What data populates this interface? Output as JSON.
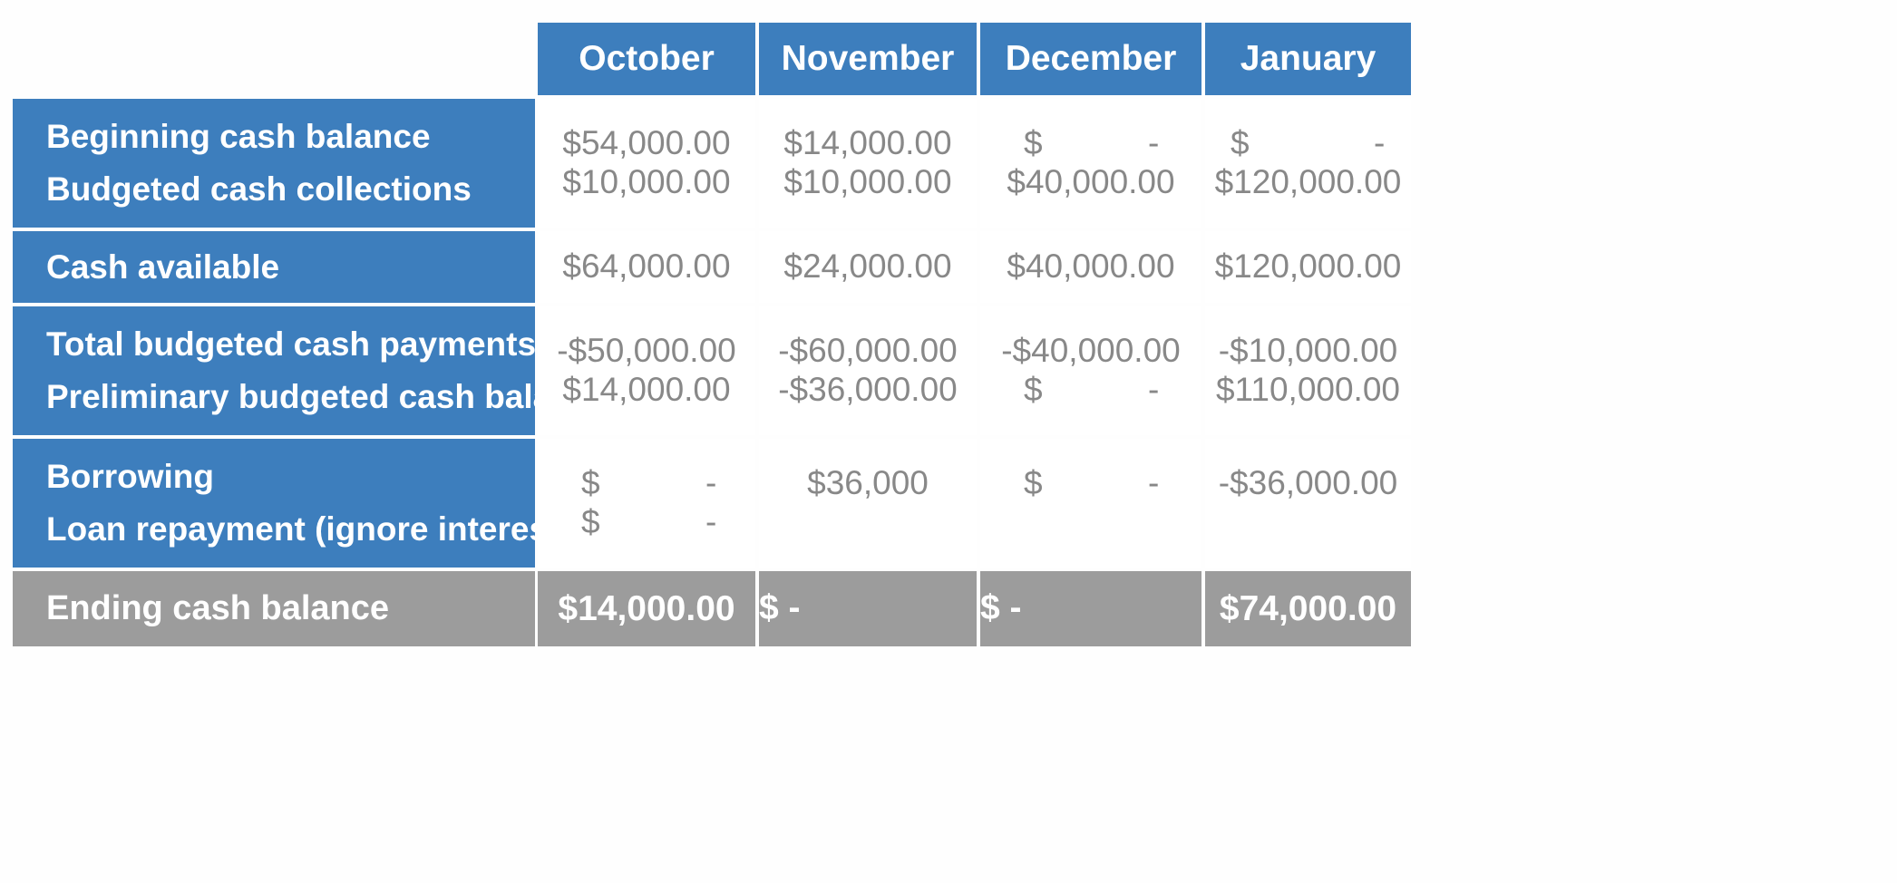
{
  "table": {
    "columns": [
      "October",
      "November",
      "December",
      "January"
    ],
    "groups": [
      {
        "labels": [
          "Beginning cash balance",
          "Budgeted cash collections"
        ],
        "rows": [
          [
            "$54,000.00",
            "$14,000.00",
            {
              "cur": "$",
              "val": "-"
            },
            {
              "cur": "$",
              "val": "-"
            }
          ],
          [
            "$10,000.00",
            "$10,000.00",
            "$40,000.00",
            "$120,000.00"
          ]
        ]
      },
      {
        "labels": [
          "Cash available"
        ],
        "rows": [
          [
            "$64,000.00",
            "$24,000.00",
            "$40,000.00",
            "$120,000.00"
          ]
        ]
      },
      {
        "labels": [
          "Total budgeted cash payments",
          "Preliminary budgeted cash balance"
        ],
        "rows": [
          [
            "-$50,000.00",
            "-$60,000.00",
            "-$40,000.00",
            "-$10,000.00"
          ],
          [
            "$14,000.00",
            "-$36,000.00",
            {
              "cur": "$",
              "val": "-"
            },
            "$110,000.00"
          ]
        ]
      },
      {
        "labels": [
          "Borrowing",
          "Loan repayment (ignore interest)"
        ],
        "rows": [
          [
            {
              "cur": "$",
              "val": "-"
            },
            "$36,000",
            {
              "cur": "$",
              "val": "-"
            },
            "-$36,000.00"
          ],
          [
            {
              "cur": "$",
              "val": "-"
            },
            "",
            "",
            ""
          ]
        ]
      }
    ],
    "ending": {
      "label": "Ending cash balance",
      "values": [
        "$14,000.00",
        {
          "cur": "$",
          "val": "-"
        },
        {
          "cur": "$",
          "val": "-"
        },
        "$74,000.00"
      ]
    }
  }
}
